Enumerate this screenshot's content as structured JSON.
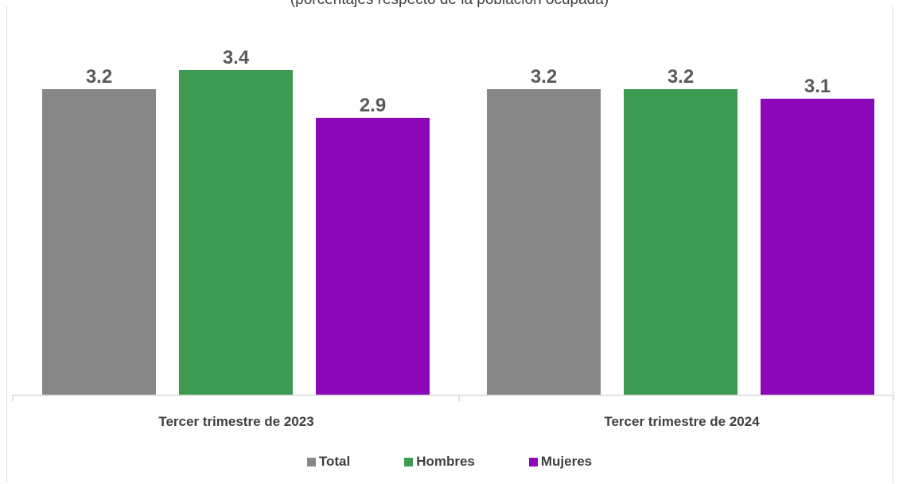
{
  "chart_data": {
    "type": "bar",
    "title": "",
    "subtitle": "(porcentajes respecto de la población ocupada)",
    "xlabel": "",
    "ylabel": "",
    "categories": [
      "Tercer trimestre de 2023",
      "Tercer trimestre de 2024"
    ],
    "series": [
      {
        "name": "Total",
        "values": [
          3.2,
          3.2
        ],
        "labels": [
          "3.2",
          "3.2"
        ],
        "color": "#878787"
      },
      {
        "name": "Hombres",
        "values": [
          3.4,
          3.2
        ],
        "labels": [
          "3.4",
          "3.2"
        ],
        "color": "#3d9a52"
      },
      {
        "name": "Mujeres",
        "values": [
          2.9,
          3.1
        ],
        "labels": [
          "2.9",
          "3.1"
        ],
        "color": "#8b07b8"
      }
    ],
    "ylim": [
      0,
      3.4
    ],
    "grid": false,
    "legend_position": "bottom"
  }
}
